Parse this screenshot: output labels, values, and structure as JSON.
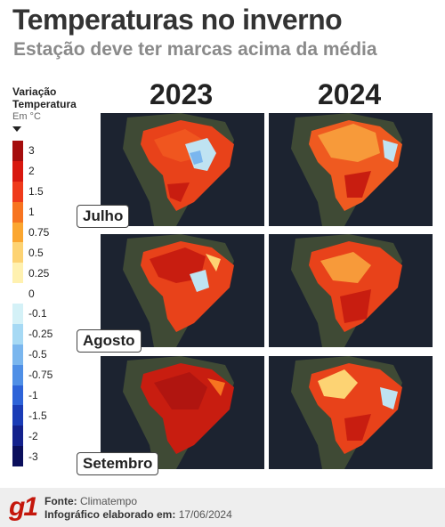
{
  "header": {
    "title": "Temperaturas no inverno",
    "subtitle": "Estação deve ter marcas acima da média"
  },
  "legend": {
    "title_line1": "Variação",
    "title_line2": "Temperatura",
    "unit": "Em °C",
    "steps": [
      {
        "label": "3",
        "color": "#a50d0d"
      },
      {
        "label": "2",
        "color": "#d8180f"
      },
      {
        "label": "1.5",
        "color": "#ef3a1b"
      },
      {
        "label": "1",
        "color": "#f77420"
      },
      {
        "label": "0.75",
        "color": "#fba630"
      },
      {
        "label": "0.5",
        "color": "#fdd373"
      },
      {
        "label": "0.25",
        "color": "#fff1b0"
      },
      {
        "label": "0",
        "color": "#ffffff"
      },
      {
        "label": "-0.1",
        "color": "#d4f1f7"
      },
      {
        "label": "-0.25",
        "color": "#a6d9f4"
      },
      {
        "label": "-0.5",
        "color": "#7ab6ee"
      },
      {
        "label": "-0.75",
        "color": "#4f8fe6"
      },
      {
        "label": "-1",
        "color": "#2d63d8"
      },
      {
        "label": "-1.5",
        "color": "#1a3cb6"
      },
      {
        "label": "-2",
        "color": "#13218c"
      },
      {
        "label": "-3",
        "color": "#0b0f5c"
      }
    ]
  },
  "years": [
    "2023",
    "2024"
  ],
  "months": [
    "Julho",
    "Agosto",
    "Setembro"
  ],
  "colors": {
    "ocean": "#1c2330",
    "land": "#3f4a35",
    "warm": "#e8421a",
    "hot": "#c81d10",
    "mild": "#f79a3a",
    "cool": "#bfe3f2",
    "brand": "#c4170c"
  },
  "footer": {
    "logo": "g1",
    "source_label": "Fonte:",
    "source_value": "Climatempo",
    "date_label": "Infográfico elaborado em:",
    "date_value": "17/06/2024"
  }
}
